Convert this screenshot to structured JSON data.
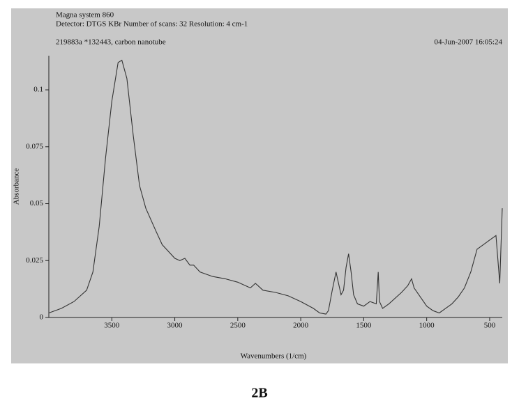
{
  "chart_data": {
    "type": "line",
    "title": "Magna system 860",
    "subtitle": "Detector: DTGS KBr  Number of scans: 32  Resolution: 4 cm-1",
    "sample": "219883a  *132443, carbon nanotube",
    "date": "04-Jun-2007 16:05:24",
    "x_label": "Wavenumbers (1/cm)",
    "y_label": "Absorbance",
    "caption": "2B",
    "xlim": [
      4000,
      400
    ],
    "ylim": [
      0,
      0.115
    ],
    "xticks": [
      3500,
      3000,
      2500,
      2000,
      1500,
      1000,
      500
    ],
    "yticks": [
      0,
      0.025,
      0.05,
      0.075,
      0.1
    ],
    "series": [
      {
        "color": "#333333",
        "x": [
          4000,
          3900,
          3800,
          3700,
          3650,
          3600,
          3550,
          3500,
          3450,
          3420,
          3380,
          3330,
          3280,
          3230,
          3150,
          3100,
          3000,
          2960,
          2920,
          2880,
          2850,
          2800,
          2700,
          2600,
          2500,
          2400,
          2360,
          2340,
          2300,
          2200,
          2100,
          2000,
          1900,
          1850,
          1800,
          1780,
          1750,
          1720,
          1700,
          1680,
          1660,
          1640,
          1620,
          1600,
          1580,
          1550,
          1500,
          1450,
          1400,
          1385,
          1375,
          1350,
          1300,
          1200,
          1150,
          1120,
          1100,
          1050,
          1000,
          950,
          900,
          850,
          800,
          750,
          700,
          650,
          600,
          550,
          500,
          450,
          420,
          400
        ],
        "values": [
          0.002,
          0.004,
          0.007,
          0.012,
          0.02,
          0.04,
          0.07,
          0.095,
          0.112,
          0.113,
          0.105,
          0.08,
          0.058,
          0.048,
          0.038,
          0.032,
          0.026,
          0.025,
          0.026,
          0.023,
          0.023,
          0.02,
          0.018,
          0.017,
          0.0155,
          0.013,
          0.015,
          0.014,
          0.012,
          0.011,
          0.0095,
          0.007,
          0.004,
          0.002,
          0.0015,
          0.003,
          0.012,
          0.02,
          0.015,
          0.01,
          0.012,
          0.022,
          0.028,
          0.02,
          0.01,
          0.006,
          0.005,
          0.007,
          0.006,
          0.02,
          0.007,
          0.004,
          0.006,
          0.011,
          0.014,
          0.017,
          0.013,
          0.009,
          0.005,
          0.003,
          0.002,
          0.004,
          0.006,
          0.009,
          0.013,
          0.02,
          0.03,
          0.032,
          0.034,
          0.036,
          0.015,
          0.048
        ]
      }
    ]
  }
}
